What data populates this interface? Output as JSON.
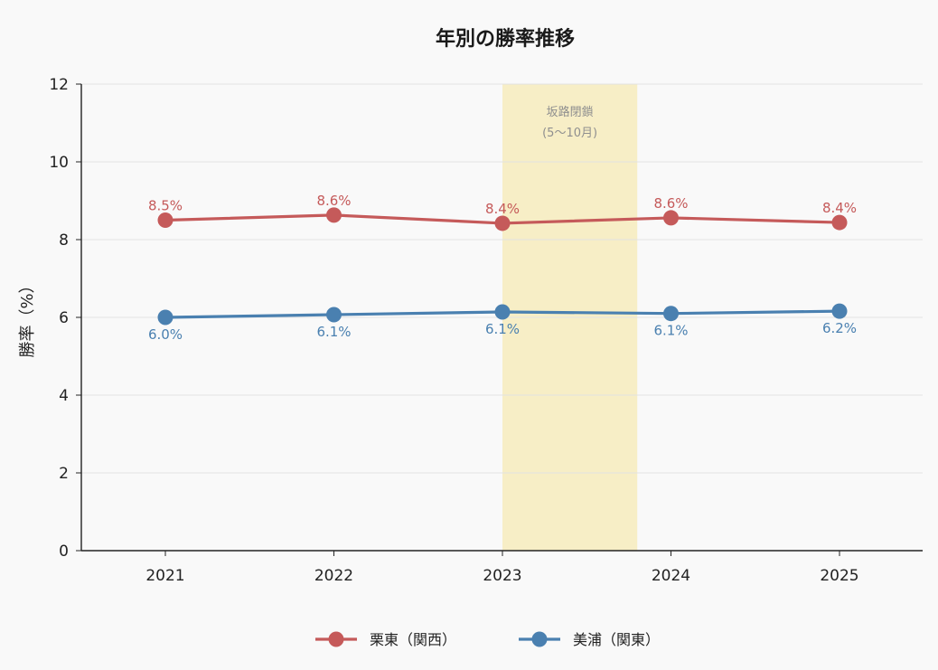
{
  "chart_data": {
    "type": "line",
    "title": "年別の勝率推移",
    "xlabel": "",
    "ylabel": "勝率（%）",
    "categories": [
      "2021",
      "2022",
      "2023",
      "2024",
      "2025"
    ],
    "ylim": [
      0,
      12
    ],
    "yticks": [
      "0",
      "2",
      "4",
      "6",
      "8",
      "10",
      "12"
    ],
    "grid": "horizontal",
    "legend_position": "bottom-center",
    "series": [
      {
        "name": "栗東（関西）",
        "values": [
          8.5,
          8.63,
          8.42,
          8.56,
          8.44
        ],
        "labels": [
          "8.5%",
          "8.6%",
          "8.4%",
          "8.6%",
          "8.4%"
        ],
        "color": "#c55a5a",
        "label_position": "above"
      },
      {
        "name": "美浦（関東）",
        "values": [
          6.0,
          6.07,
          6.14,
          6.1,
          6.16
        ],
        "labels": [
          "6.0%",
          "6.1%",
          "6.1%",
          "6.1%",
          "6.2%"
        ],
        "color": "#4a80b0",
        "label_position": "below"
      }
    ],
    "annotation": {
      "text_line1": "坂路閉鎖",
      "text_line2": "(5〜10月)",
      "x_start": 2023,
      "x_end": 2023.8,
      "color": "#f7eab0"
    }
  }
}
